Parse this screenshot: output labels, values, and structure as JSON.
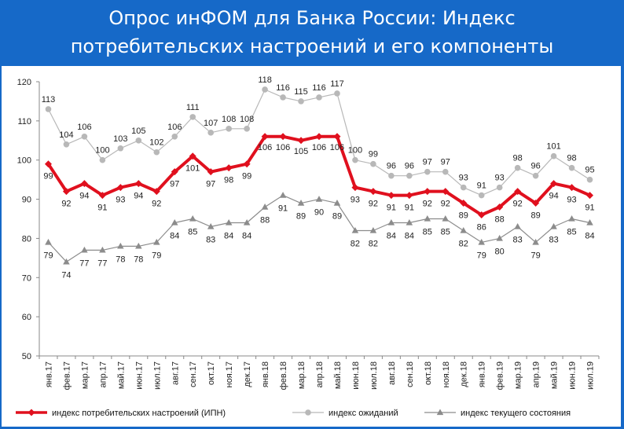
{
  "title_line1": "Опрос инФОМ для Банка России: Индекс",
  "title_line2": "потребительских настроений и его компоненты",
  "chart_data": {
    "type": "line",
    "categories": [
      "янв.17",
      "фев.17",
      "мар.17",
      "апр.17",
      "май.17",
      "июн.17",
      "июл.17",
      "авг.17",
      "сен.17",
      "окт.17",
      "ноя.17",
      "дек.17",
      "янв.18",
      "фев.18",
      "мар.18",
      "апр.18",
      "май.18",
      "июн.18",
      "июл.18",
      "авг.18",
      "сен.18",
      "окт.18",
      "ноя.18",
      "дек.18",
      "янв.19",
      "фев.19",
      "мар.19",
      "апр.19",
      "май.19",
      "июн.19",
      "июл.19"
    ],
    "ylim": [
      50,
      120
    ],
    "yticks": [
      50,
      60,
      70,
      80,
      90,
      100,
      110,
      120
    ],
    "grid": false,
    "legend_position": "bottom",
    "series": [
      {
        "name": "индекс потребительских настроений (ИПН)",
        "color": "#e0101e",
        "values": [
          99,
          92,
          94,
          91,
          93,
          94,
          92,
          97,
          101,
          97,
          98,
          99,
          106,
          106,
          105,
          106,
          106,
          93,
          92,
          91,
          91,
          92,
          92,
          89,
          86,
          88,
          92,
          89,
          94,
          93,
          91
        ]
      },
      {
        "name": "индекс ожиданий",
        "color": "#b8b8b8",
        "values": [
          113,
          104,
          106,
          100,
          103,
          105,
          102,
          106,
          111,
          107,
          108,
          108,
          118,
          116,
          115,
          116,
          117,
          100,
          99,
          96,
          96,
          97,
          97,
          93,
          91,
          93,
          98,
          96,
          101,
          98,
          95
        ]
      },
      {
        "name": "индекс текущего состояния",
        "color": "#8c8c8c",
        "values": [
          79,
          74,
          77,
          77,
          78,
          78,
          79,
          84,
          85,
          83,
          84,
          84,
          88,
          91,
          89,
          90,
          89,
          82,
          82,
          84,
          84,
          85,
          85,
          82,
          79,
          80,
          83,
          79,
          83,
          85,
          84
        ]
      }
    ]
  },
  "colors": {
    "banner": "#1669c8",
    "panel": "#ffffff"
  }
}
